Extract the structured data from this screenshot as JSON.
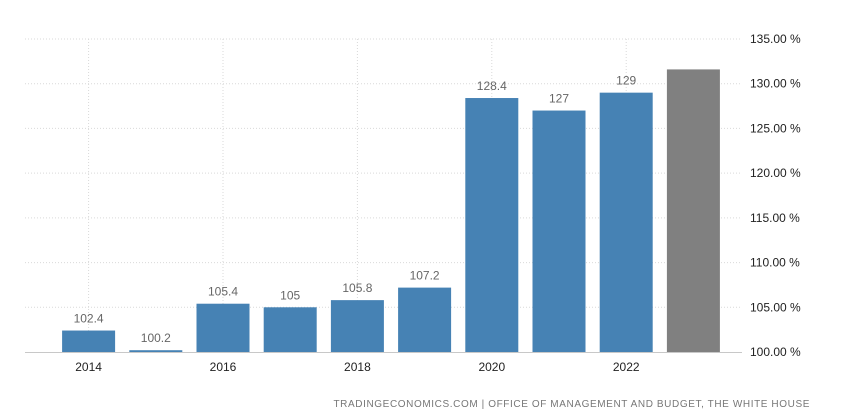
{
  "chart_data": {
    "type": "bar",
    "title": "",
    "xlabel": "",
    "ylabel": "",
    "ylim": [
      100,
      135
    ],
    "yticks": [
      100,
      105,
      110,
      115,
      120,
      125,
      130,
      135
    ],
    "ytick_labels": [
      "100.00 %",
      "105.00 %",
      "110.00 %",
      "115.00 %",
      "120.00 %",
      "125.00 %",
      "130.00 %",
      "135.00 %"
    ],
    "categories": [
      "2014",
      "2015",
      "2016",
      "2017",
      "2018",
      "2019",
      "2020",
      "2021",
      "2022",
      "2023"
    ],
    "xtick_labels": [
      "2014",
      "",
      "2016",
      "",
      "2018",
      "",
      "2020",
      "",
      "2022",
      ""
    ],
    "values": [
      102.4,
      100.2,
      105.4,
      105,
      105.8,
      107.2,
      128.4,
      127,
      129,
      131.6
    ],
    "data_labels": [
      "102.4",
      "100.2",
      "105.4",
      "105",
      "105.8",
      "107.2",
      "128.4",
      "127",
      "129",
      ""
    ],
    "bar_colors": [
      "#4682b4",
      "#4682b4",
      "#4682b4",
      "#4682b4",
      "#4682b4",
      "#4682b4",
      "#4682b4",
      "#4682b4",
      "#4682b4",
      "#808080"
    ],
    "grid": true,
    "legend": "none",
    "source": "TRADINGECONOMICS.COM  |  OFFICE OF MANAGEMENT AND BUDGET, THE WHITE HOUSE"
  }
}
